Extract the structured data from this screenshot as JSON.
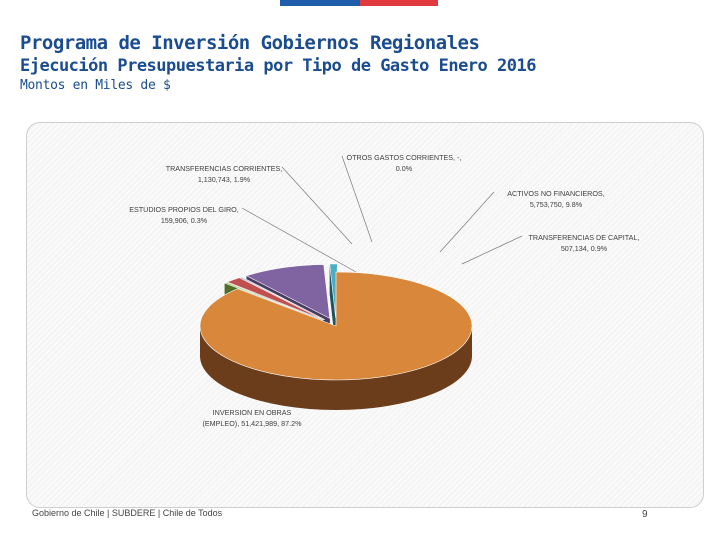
{
  "header": {
    "title": "Programa de Inversión Gobiernos Regionales",
    "subtitle": "Ejecución Presupuestaria por Tipo de Gasto Enero 2016",
    "units": "Montos en Miles de $"
  },
  "footer": {
    "text": "Gobierno de Chile | SUBDERE | Chile de Todos",
    "page_number": "9"
  },
  "chart_data": {
    "type": "pie",
    "style": "3d exploded",
    "slices": [
      {
        "name": "INVERSION EN OBRAS (EMPLEO)",
        "value": 51421989,
        "percent": 87.2,
        "label_lines": [
          "INVERSION EN OBRAS",
          "(EMPLEO), 51,421,989, 87.2%"
        ],
        "color": "#d9883b",
        "side_color": "#6b3d1a"
      },
      {
        "name": "ESTUDIOS PROPIOS DEL GIRO",
        "value": 159906,
        "percent": 0.3,
        "label_lines": [
          "ESTUDIOS PROPIOS DEL GIRO,",
          "159,906, 0.3%"
        ],
        "color": "#8fbf4e",
        "side_color": "#4f6e28"
      },
      {
        "name": "TRANSFERENCIAS CORRIENTES",
        "value": 1130743,
        "percent": 1.9,
        "label_lines": [
          "TRANSFERENCIAS CORRIENTES,",
          "1,130,743, 1.9%"
        ],
        "color": "#c0504d",
        "side_color": "#6e2725"
      },
      {
        "name": "OTROS GASTOS CORRIENTES",
        "value": null,
        "percent": 0.0,
        "label_lines": [
          "OTROS GASTOS CORRIENTES, -,",
          "0.0%"
        ],
        "color": "#4f81bd",
        "side_color": "#284870"
      },
      {
        "name": "ACTIVOS NO FINANCIEROS",
        "value": 5753750,
        "percent": 9.8,
        "label_lines": [
          "ACTIVOS NO FINANCIEROS,",
          "5,753,750, 9.8%"
        ],
        "color": "#8064a2",
        "side_color": "#4a3a60"
      },
      {
        "name": "TRANSFERENCIAS DE CAPITAL",
        "value": 507134,
        "percent": 0.9,
        "label_lines": [
          "TRANSFERENCIAS DE CAPITAL,",
          "507,134, 0.9%"
        ],
        "color": "#4bacc6",
        "side_color": "#1f5361"
      }
    ]
  }
}
